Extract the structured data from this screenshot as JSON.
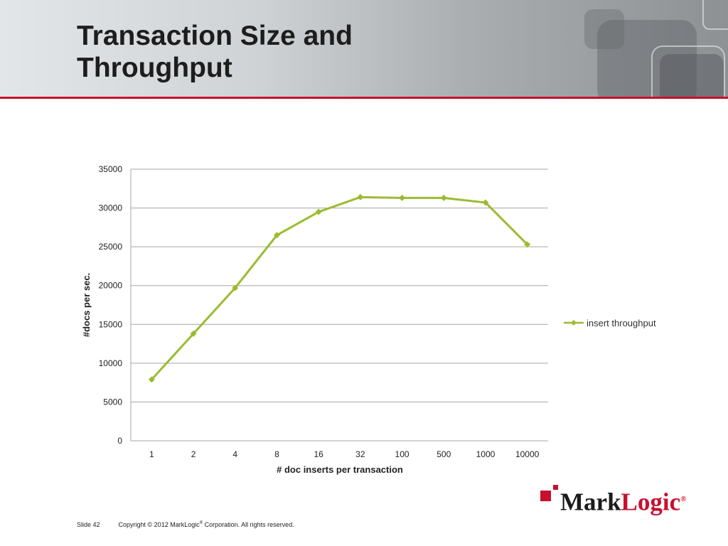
{
  "slide": {
    "title_line1": "Transaction Size and",
    "title_line2": "Throughput"
  },
  "footer": {
    "slide_number": "Slide 42",
    "copyright_prefix": "Copyright © 2012 MarkLogic",
    "copyright_reg": "®",
    "copyright_suffix": " Corporation. All rights reserved."
  },
  "logo": {
    "part1": "Mark",
    "part2": "Logic",
    "mark": "®"
  },
  "colors": {
    "accent": "#c8102e",
    "series": "#9bbb31",
    "grid": "#a6a6a6",
    "header_dark": "#8d9194"
  },
  "chart_data": {
    "type": "line",
    "categories": [
      "1",
      "2",
      "4",
      "8",
      "16",
      "32",
      "100",
      "500",
      "1000",
      "10000"
    ],
    "series": [
      {
        "name": "insert throughput",
        "values": [
          7900,
          13800,
          19700,
          26500,
          29500,
          31400,
          31300,
          31300,
          30700,
          25300
        ]
      }
    ],
    "xlabel": "# doc inserts per transaction",
    "ylabel": "#docs per sec.",
    "ylim": [
      0,
      35000
    ],
    "yticks": [
      0,
      5000,
      10000,
      15000,
      20000,
      25000,
      30000,
      35000
    ],
    "grid": true,
    "legend_position": "right",
    "marker": "diamond"
  }
}
